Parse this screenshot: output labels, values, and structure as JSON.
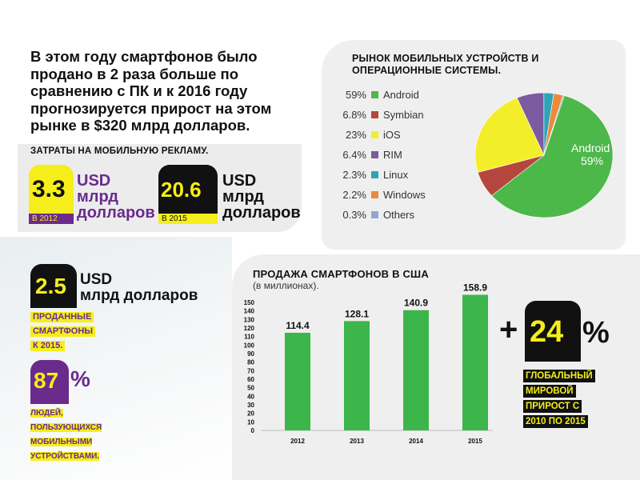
{
  "headline": "В этом году смартфонов было продано в 2 раза больше по сравнению с ПК и к 2016 году прогнозируется прирост на этом рынке в $320 млрд долларов.",
  "ad_spend": {
    "title": "ЗАТРАТЫ НА МОБИЛЬНУЮ РЕКЛАМУ.",
    "y2012": {
      "value": "3.3",
      "year": "В 2012",
      "unit_line1": "USD",
      "unit_line2": "млрд",
      "unit_line3": "долларов"
    },
    "y2015": {
      "value": "20.6",
      "year": "В 2015",
      "unit_line1": "USD",
      "unit_line2": "млрд",
      "unit_line3": "долларов"
    }
  },
  "sold": {
    "value": "2.5",
    "unit_line1": "USD",
    "unit_line2": "млрд долларов",
    "label_line1": "ПРОДАННЫЕ",
    "label_line2": "СМАРТФОНЫ",
    "label_line3": "К 2015."
  },
  "users": {
    "value": "87",
    "percent": "%",
    "label_line1": "ЛЮДЕЙ,",
    "label_line2": "ПОЛЬЗУЮЩИХСЯ",
    "label_line3": "МОБИЛЬНЫМИ",
    "label_line4": "УСТРОЙСТВАМИ."
  },
  "growth": {
    "plus": "+",
    "value": "24",
    "percent": "%",
    "label_line1": "ГЛОБАЛЬНЫЙ",
    "label_line2": "МИРОВОЙ",
    "label_line3": "ПРИРОСТ С",
    "label_line4": "2010 ПО 2015"
  },
  "colors": {
    "yellow": "#f5ee1a",
    "black": "#111111",
    "purple": "#6a2b8c",
    "green": "#3cb54a"
  },
  "chart_data": [
    {
      "type": "pie",
      "title": "РЫНОК МОБИЛЬНЫХ УСТРОЙСТВ И ОПЕРАЦИОННЫЕ СИСТЕМЫ.",
      "slices": [
        {
          "name": "Android",
          "value": 59,
          "label": "59%",
          "color": "#4cb849"
        },
        {
          "name": "Symbian",
          "value": 6.8,
          "label": "6.8%",
          "color": "#b5463e"
        },
        {
          "name": "iOS",
          "value": 23,
          "label": "23%",
          "color": "#f3ee2a"
        },
        {
          "name": "RIM",
          "value": 6.4,
          "label": "6.4%",
          "color": "#7b5aa0"
        },
        {
          "name": "Linux",
          "value": 2.3,
          "label": "2.3%",
          "color": "#2fa4b9"
        },
        {
          "name": "Windows",
          "value": 2.2,
          "label": "2.2%",
          "color": "#e88b3c"
        },
        {
          "name": "Others",
          "value": 0.3,
          "label": "0.3%",
          "color": "#8fa6d6"
        }
      ],
      "inner_label": {
        "name": "Android",
        "value": "59%"
      }
    },
    {
      "type": "bar",
      "title": "ПРОДАЖА СМАРТФОНОВ В США",
      "subtitle": "(в миллионах).",
      "categories": [
        "2012",
        "2013",
        "2014",
        "2015"
      ],
      "values": [
        114.4,
        128.1,
        140.9,
        158.9
      ],
      "value_labels": [
        "114.4",
        "128.1",
        "140.9",
        "158.9"
      ],
      "ylim": [
        0,
        150
      ],
      "yticks": [
        "0",
        "10",
        "20",
        "30",
        "40",
        "50",
        "60",
        "70",
        "80",
        "90",
        "100",
        "110",
        "120",
        "130",
        "140",
        "150"
      ],
      "bar_color": "#3cb54a",
      "grid": false
    }
  ]
}
